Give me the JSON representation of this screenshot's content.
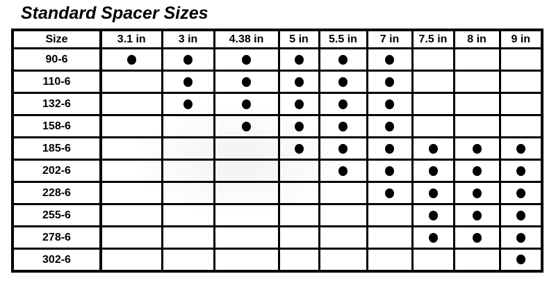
{
  "title": "Standard Spacer Sizes",
  "chart_data": {
    "type": "table",
    "title": "Standard Spacer Sizes",
    "corner_header": "Size",
    "columns": [
      "3.1 in",
      "3 in",
      "4.38 in",
      "5 in",
      "5.5 in",
      "7 in",
      "7.5 in",
      "8 in",
      "9 in"
    ],
    "marker": "filled-black-dot",
    "rows": [
      {
        "size": "90-6",
        "available": [
          1,
          1,
          1,
          1,
          1,
          1,
          0,
          0,
          0
        ]
      },
      {
        "size": "110-6",
        "available": [
          0,
          1,
          1,
          1,
          1,
          1,
          0,
          0,
          0
        ]
      },
      {
        "size": "132-6",
        "available": [
          0,
          1,
          1,
          1,
          1,
          1,
          0,
          0,
          0
        ]
      },
      {
        "size": "158-6",
        "available": [
          0,
          0,
          1,
          1,
          1,
          1,
          0,
          0,
          0
        ]
      },
      {
        "size": "185-6",
        "available": [
          0,
          0,
          0,
          1,
          1,
          1,
          1,
          1,
          1
        ]
      },
      {
        "size": "202-6",
        "available": [
          0,
          0,
          0,
          0,
          1,
          1,
          1,
          1,
          1
        ]
      },
      {
        "size": "228-6",
        "available": [
          0,
          0,
          0,
          0,
          0,
          1,
          1,
          1,
          1
        ]
      },
      {
        "size": "255-6",
        "available": [
          0,
          0,
          0,
          0,
          0,
          0,
          1,
          1,
          1
        ]
      },
      {
        "size": "278-6",
        "available": [
          0,
          0,
          0,
          0,
          0,
          0,
          1,
          1,
          1
        ]
      },
      {
        "size": "302-6",
        "available": [
          0,
          0,
          0,
          0,
          0,
          0,
          0,
          0,
          1
        ]
      }
    ],
    "legend_position": "none",
    "grid": true,
    "colors": {
      "ink": "#000000",
      "background": "#ffffff",
      "dot": "#000000"
    }
  }
}
